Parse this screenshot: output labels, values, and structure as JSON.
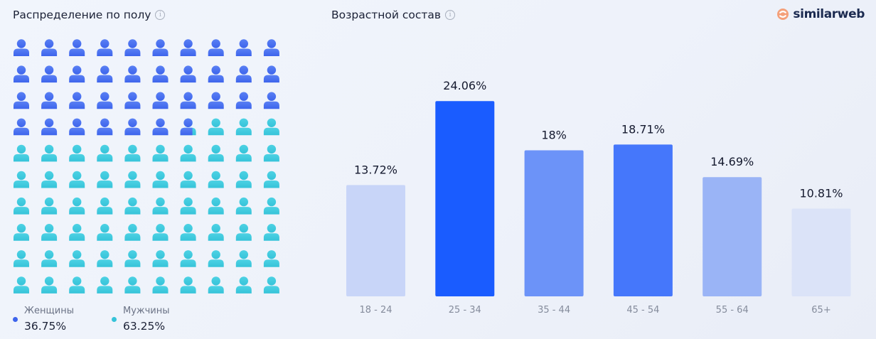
{
  "gender": {
    "title": "Распределение по полу",
    "icon": "info-icon",
    "legend": [
      {
        "label": "Женщины",
        "value": "36.75%",
        "color": "#3d64ec"
      },
      {
        "label": "Мужчины",
        "value": "63.25%",
        "color": "#36c3d9"
      }
    ],
    "female_share": 36.75
  },
  "age": {
    "title": "Возрастной состав",
    "icon": "info-icon"
  },
  "logo": {
    "text": "similarweb",
    "icon": "similarweb-logo-icon"
  },
  "chart_data": [
    {
      "type": "pictogram",
      "categories": [
        "Женщины",
        "Мужчины"
      ],
      "values": [
        36.75,
        63.25
      ],
      "total_icons": 100,
      "colors": [
        "#3d64ec",
        "#36c3d9"
      ]
    },
    {
      "type": "bar",
      "categories": [
        "18 - 24",
        "25 - 34",
        "35 - 44",
        "45 - 54",
        "55 - 64",
        "65+"
      ],
      "values": [
        13.72,
        24.06,
        18,
        18.71,
        14.69,
        10.81
      ],
      "labels": [
        "13.72%",
        "24.06%",
        "18%",
        "18.71%",
        "14.69%",
        "10.81%"
      ],
      "colors": [
        "#c8d5f8",
        "#1a5cff",
        "#6c93f8",
        "#4577fb",
        "#9ab4f6",
        "#dbe3f8"
      ],
      "ylim": [
        0,
        25
      ],
      "grid": false
    }
  ]
}
